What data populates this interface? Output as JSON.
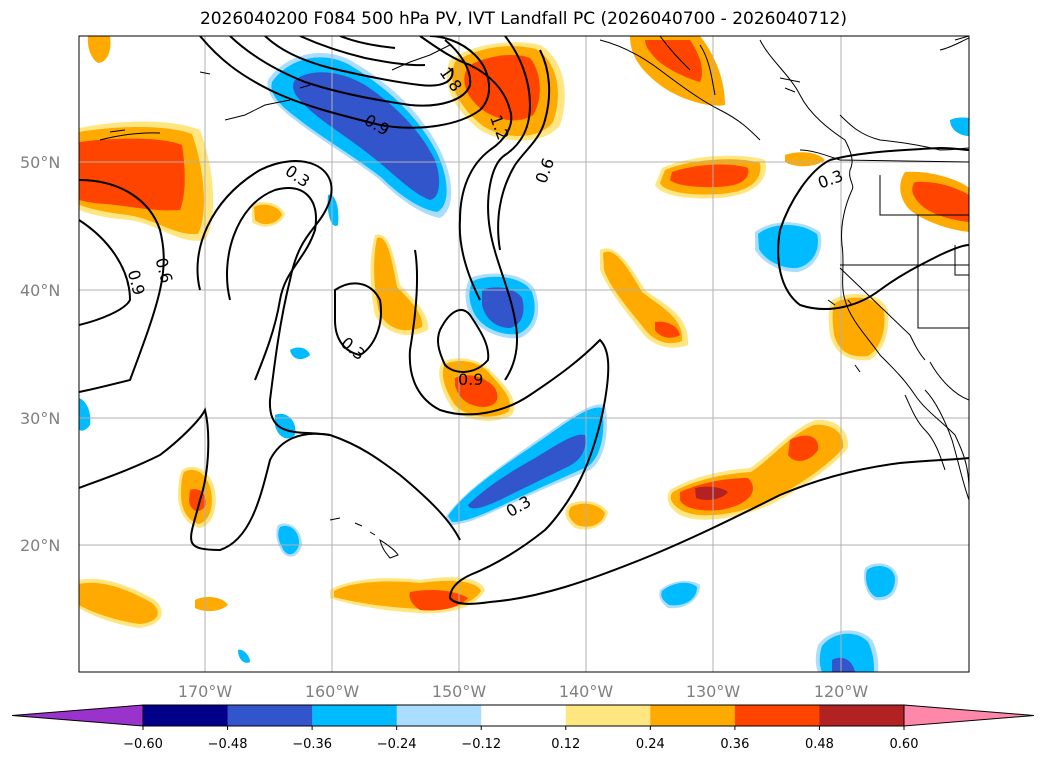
{
  "title": "2026040200 F084 500 hPa PV, IVT Landfall PC (2026040700 - 2026040712)",
  "latitude_labels": [
    "50°N",
    "40°N",
    "30°N",
    "20°N"
  ],
  "longitude_labels": [
    "170°W",
    "160°W",
    "150°W",
    "140°W",
    "130°W",
    "120°W"
  ],
  "contour_labels": [
    {
      "text": "1.8"
    },
    {
      "text": "1.2"
    },
    {
      "text": "0.9"
    },
    {
      "text": "0.6"
    },
    {
      "text": "0.3"
    },
    {
      "text": "0.6"
    },
    {
      "text": "0.9"
    },
    {
      "text": "0.3"
    },
    {
      "text": "0.9"
    },
    {
      "text": "0.3"
    },
    {
      "text": "0.3"
    }
  ],
  "colorbar": {
    "ticks": [
      "−0.60",
      "−0.48",
      "−0.36",
      "−0.24",
      "−0.12",
      "0.12",
      "0.24",
      "0.36",
      "0.48",
      "0.60"
    ],
    "colors": [
      "#9933cc",
      "#000088",
      "#3355cc",
      "#00bbff",
      "#aaddff",
      "#ffffff",
      "#ffe680",
      "#ffaa00",
      "#ff4400",
      "#b22222",
      "#ff88aa"
    ]
  },
  "chart_data": {
    "type": "map",
    "title": "2026040200 F084 500 hPa PV, IVT Landfall PC (2026040700 - 2026040712)",
    "lon_range": [
      -180,
      -110
    ],
    "lat_range": [
      10,
      60
    ],
    "contour_levels": [
      0.3,
      0.6,
      0.9,
      1.2,
      1.8
    ],
    "fill_levels": [
      -0.6,
      -0.48,
      -0.36,
      -0.24,
      -0.12,
      0.12,
      0.24,
      0.36,
      0.48,
      0.6
    ]
  }
}
